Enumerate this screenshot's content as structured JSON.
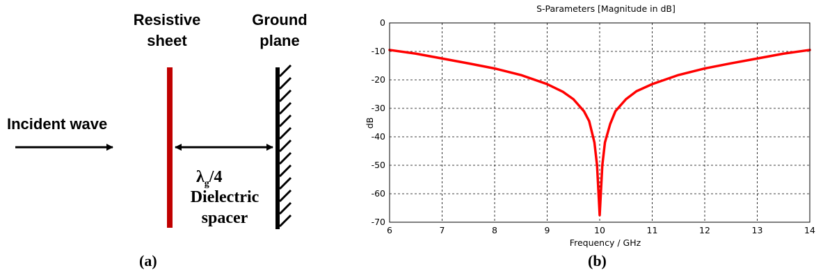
{
  "diagram": {
    "label_resistive_line1": "Resistive",
    "label_resistive_line2": "sheet",
    "label_ground_line1": "Ground",
    "label_ground_line2": "plane",
    "label_incident": "Incident wave",
    "label_lambda_main": "λ",
    "label_lambda_sub": "g",
    "label_lambda_tail": "/4",
    "label_dielectric_line1": "Dielectric",
    "label_dielectric_line2": "spacer",
    "caption": "(a)",
    "colors": {
      "resistive_sheet": "#c00000",
      "ground_plane": "#000000",
      "arrows": "#000000"
    }
  },
  "chart_caption": "(b)",
  "chart_data": {
    "type": "line",
    "title": "S-Parameters [Magnitude in dB]",
    "xlabel": "Frequency / GHz",
    "ylabel": "dB",
    "xlim": [
      6,
      14
    ],
    "ylim": [
      -70,
      0
    ],
    "x_ticks": [
      6,
      7,
      8,
      9,
      10,
      11,
      12,
      13,
      14
    ],
    "y_ticks": [
      0,
      -10,
      -20,
      -30,
      -40,
      -50,
      -60,
      -70
    ],
    "grid": true,
    "grid_style": "dashed",
    "legend": "none",
    "series": [
      {
        "color": "#ff0000",
        "x": [
          6,
          6.5,
          7,
          7.5,
          8,
          8.5,
          9,
          9.3,
          9.5,
          9.7,
          9.8,
          9.9,
          9.95,
          10,
          10.05,
          10.1,
          10.2,
          10.3,
          10.5,
          10.7,
          11,
          11.5,
          12,
          12.5,
          13,
          13.5,
          14
        ],
        "values": [
          -9.5,
          -10.8,
          -12.5,
          -14.2,
          -16.0,
          -18.3,
          -21.5,
          -24.2,
          -26.8,
          -31.0,
          -34.5,
          -42.0,
          -50.0,
          -67.5,
          -50.0,
          -42.0,
          -35.5,
          -31.0,
          -26.8,
          -24.0,
          -21.5,
          -18.3,
          -16.0,
          -14.2,
          -12.5,
          -10.8,
          -9.5
        ]
      }
    ]
  }
}
